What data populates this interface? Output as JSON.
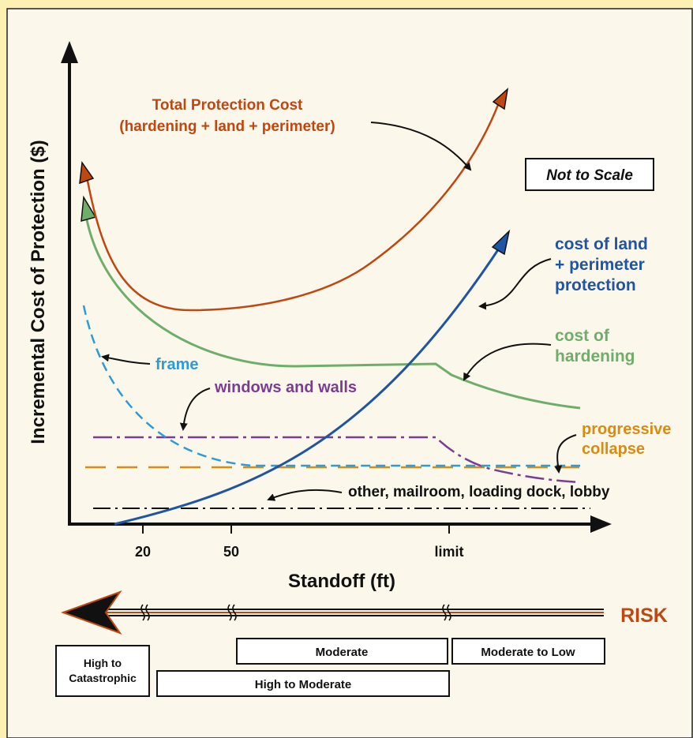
{
  "axes": {
    "ylabel": "Incremental Cost of Protection ($)",
    "xlabel": "Standoff (ft)",
    "ticks": [
      "20",
      "50",
      "limit"
    ]
  },
  "note": "Not to Scale",
  "curves": {
    "total": {
      "label_line1": "Total Protection Cost",
      "label_line2": "(hardening + land + perimeter)",
      "color": "#c0470f"
    },
    "land": {
      "label_line1": "cost of land",
      "label_line2": "+ perimeter",
      "label_line3": "protection",
      "color": "#1f55a3"
    },
    "hardening": {
      "label_line1": "cost of",
      "label_line2": "hardening",
      "color": "#6fae6a"
    },
    "frame": {
      "label": "frame",
      "color": "#2f9bd6"
    },
    "windows": {
      "label": "windows and walls",
      "color": "#7a3d91"
    },
    "collapse": {
      "label_line1": "progressive",
      "label_line2": "collapse",
      "color": "#d98b12"
    },
    "other": {
      "label": "other, mailroom, loading dock, lobby",
      "color": "#111111"
    }
  },
  "risk": {
    "label": "RISK",
    "color": "#c0470f",
    "levels": {
      "high_cat_line1": "High to",
      "high_cat_line2": "Catastrophic",
      "high_mod": "High to Moderate",
      "moderate": "Moderate",
      "mod_low": "Moderate to Low"
    }
  }
}
